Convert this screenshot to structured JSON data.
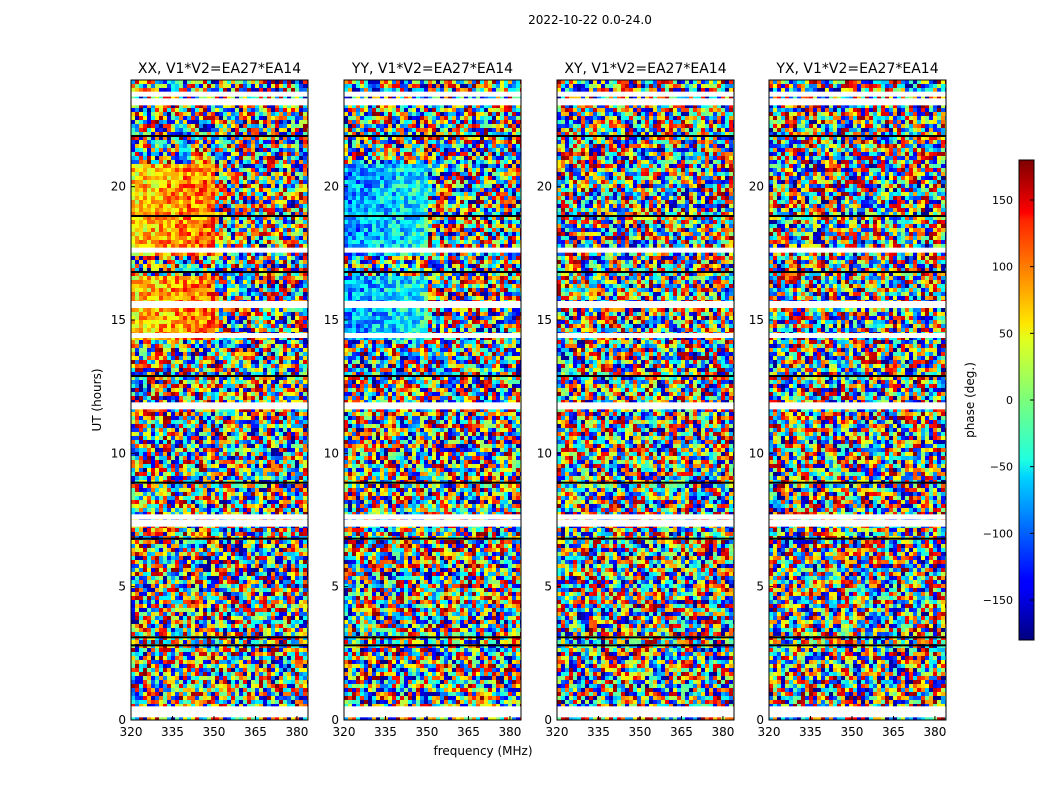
{
  "figure": {
    "suptitle": "2022-10-22 0.0-24.0",
    "shared_xlabel": "frequency (MHz)",
    "shared_ylabel": "UT (hours)"
  },
  "chart_data": {
    "type": "heatmap",
    "panels": [
      {
        "title": "XX, V1*V2=EA27*EA14",
        "polarization": "XX"
      },
      {
        "title": "YY, V1*V2=EA27*EA14",
        "polarization": "YY"
      },
      {
        "title": "XY, V1*V2=EA27*EA14",
        "polarization": "XY"
      },
      {
        "title": "YX, V1*V2=EA27*EA14",
        "polarization": "YX"
      }
    ],
    "xlim": [
      320,
      384
    ],
    "xticks": [
      320,
      335,
      350,
      365,
      380
    ],
    "ylim": [
      0,
      24
    ],
    "yticks": [
      0,
      5,
      10,
      15,
      20
    ],
    "colorbar": {
      "label": "phase (deg.)",
      "range": [
        -180,
        180
      ],
      "ticks": [
        -150,
        -100,
        -50,
        0,
        50,
        100,
        150
      ],
      "colormap": "jet"
    },
    "flagged_hours": [
      0.25,
      0.4,
      7.4,
      7.6,
      11.8,
      14.4,
      15.6,
      17.6,
      23.2,
      23.45
    ],
    "scan_gaps_hours": [
      2.8,
      3.1,
      6.8,
      8.9,
      12.9,
      16.8,
      18.9,
      21.9
    ]
  }
}
